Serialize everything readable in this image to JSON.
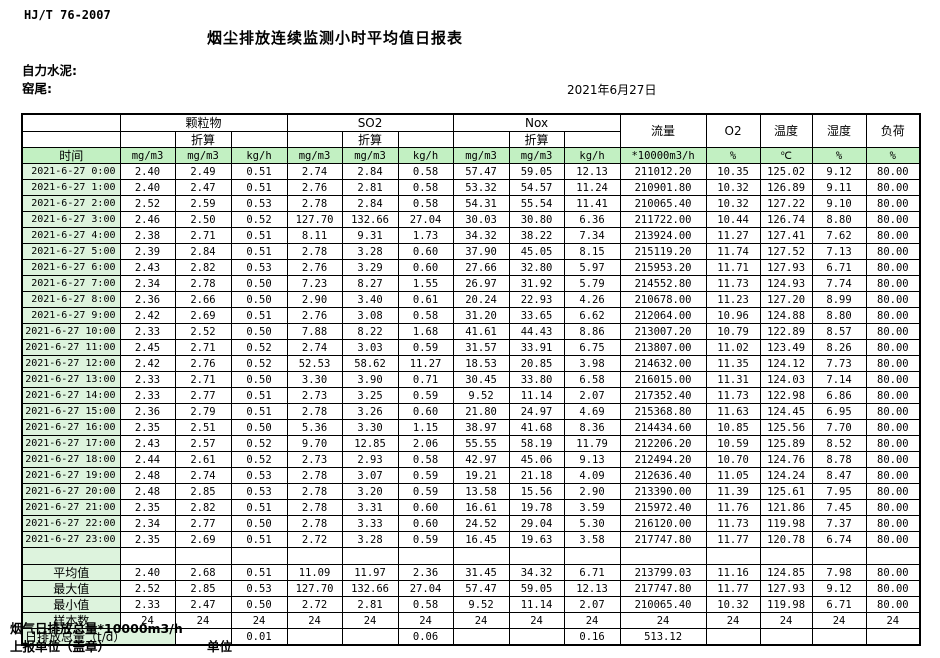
{
  "doc": {
    "standard": "HJ/T  76-2007",
    "title": "烟尘排放连续监测小时平均值日报表",
    "company": "自力水泥:",
    "location": "窑尾:",
    "date": "2021年6月27日"
  },
  "table": {
    "groups": [
      "颗粒物",
      "SO2",
      "Nox"
    ],
    "zhesuan": "折算",
    "headers": {
      "time": "时间",
      "flow": "流量",
      "o2": "O2",
      "temp": "温度",
      "humidity": "湿度",
      "load": "负荷"
    },
    "units": [
      "mg/m3",
      "mg/m3",
      "kg/h",
      "mg/m3",
      "mg/m3",
      "kg/h",
      "mg/m3",
      "mg/m3",
      "kg/h",
      "*10000m3/h",
      "%",
      "℃",
      "%",
      "%"
    ],
    "rows": [
      [
        "2021-6-27 0:00",
        "2.40",
        "2.49",
        "0.51",
        "2.74",
        "2.84",
        "0.58",
        "57.47",
        "59.05",
        "12.13",
        "211012.20",
        "10.35",
        "125.02",
        "9.12",
        "80.00"
      ],
      [
        "2021-6-27 1:00",
        "2.40",
        "2.47",
        "0.51",
        "2.76",
        "2.81",
        "0.58",
        "53.32",
        "54.57",
        "11.24",
        "210901.80",
        "10.32",
        "126.89",
        "9.11",
        "80.00"
      ],
      [
        "2021-6-27 2:00",
        "2.52",
        "2.59",
        "0.53",
        "2.78",
        "2.84",
        "0.58",
        "54.31",
        "55.54",
        "11.41",
        "210065.40",
        "10.32",
        "127.22",
        "9.10",
        "80.00"
      ],
      [
        "2021-6-27 3:00",
        "2.46",
        "2.50",
        "0.52",
        "127.70",
        "132.66",
        "27.04",
        "30.03",
        "30.80",
        "6.36",
        "211722.00",
        "10.44",
        "126.74",
        "8.80",
        "80.00"
      ],
      [
        "2021-6-27 4:00",
        "2.38",
        "2.71",
        "0.51",
        "8.11",
        "9.31",
        "1.73",
        "34.32",
        "38.22",
        "7.34",
        "213924.00",
        "11.27",
        "127.41",
        "7.62",
        "80.00"
      ],
      [
        "2021-6-27 5:00",
        "2.39",
        "2.84",
        "0.51",
        "2.78",
        "3.28",
        "0.60",
        "37.90",
        "45.05",
        "8.15",
        "215119.20",
        "11.74",
        "127.52",
        "7.13",
        "80.00"
      ],
      [
        "2021-6-27 6:00",
        "2.43",
        "2.82",
        "0.53",
        "2.76",
        "3.29",
        "0.60",
        "27.66",
        "32.80",
        "5.97",
        "215953.20",
        "11.71",
        "127.93",
        "6.71",
        "80.00"
      ],
      [
        "2021-6-27 7:00",
        "2.34",
        "2.78",
        "0.50",
        "7.23",
        "8.27",
        "1.55",
        "26.97",
        "31.92",
        "5.79",
        "214552.80",
        "11.73",
        "124.93",
        "7.74",
        "80.00"
      ],
      [
        "2021-6-27 8:00",
        "2.36",
        "2.66",
        "0.50",
        "2.90",
        "3.40",
        "0.61",
        "20.24",
        "22.93",
        "4.26",
        "210678.00",
        "11.23",
        "127.20",
        "8.99",
        "80.00"
      ],
      [
        "2021-6-27 9:00",
        "2.42",
        "2.69",
        "0.51",
        "2.76",
        "3.08",
        "0.58",
        "31.20",
        "33.65",
        "6.62",
        "212064.00",
        "10.96",
        "124.88",
        "8.80",
        "80.00"
      ],
      [
        "2021-6-27 10:00",
        "2.33",
        "2.52",
        "0.50",
        "7.88",
        "8.22",
        "1.68",
        "41.61",
        "44.43",
        "8.86",
        "213007.20",
        "10.79",
        "122.89",
        "8.57",
        "80.00"
      ],
      [
        "2021-6-27 11:00",
        "2.45",
        "2.71",
        "0.52",
        "2.74",
        "3.03",
        "0.59",
        "31.57",
        "33.91",
        "6.75",
        "213807.00",
        "11.02",
        "123.49",
        "8.26",
        "80.00"
      ],
      [
        "2021-6-27 12:00",
        "2.42",
        "2.76",
        "0.52",
        "52.53",
        "58.62",
        "11.27",
        "18.53",
        "20.85",
        "3.98",
        "214632.00",
        "11.35",
        "124.12",
        "7.73",
        "80.00"
      ],
      [
        "2021-6-27 13:00",
        "2.33",
        "2.71",
        "0.50",
        "3.30",
        "3.90",
        "0.71",
        "30.45",
        "33.80",
        "6.58",
        "216015.00",
        "11.31",
        "124.03",
        "7.14",
        "80.00"
      ],
      [
        "2021-6-27 14:00",
        "2.33",
        "2.77",
        "0.51",
        "2.73",
        "3.25",
        "0.59",
        "9.52",
        "11.14",
        "2.07",
        "217352.40",
        "11.73",
        "122.98",
        "6.86",
        "80.00"
      ],
      [
        "2021-6-27 15:00",
        "2.36",
        "2.79",
        "0.51",
        "2.78",
        "3.26",
        "0.60",
        "21.80",
        "24.97",
        "4.69",
        "215368.80",
        "11.63",
        "124.45",
        "6.95",
        "80.00"
      ],
      [
        "2021-6-27 16:00",
        "2.35",
        "2.51",
        "0.50",
        "5.36",
        "3.30",
        "1.15",
        "38.97",
        "41.68",
        "8.36",
        "214434.60",
        "10.85",
        "125.56",
        "7.70",
        "80.00"
      ],
      [
        "2021-6-27 17:00",
        "2.43",
        "2.57",
        "0.52",
        "9.70",
        "12.85",
        "2.06",
        "55.55",
        "58.19",
        "11.79",
        "212206.20",
        "10.59",
        "125.89",
        "8.52",
        "80.00"
      ],
      [
        "2021-6-27 18:00",
        "2.44",
        "2.61",
        "0.52",
        "2.73",
        "2.93",
        "0.58",
        "42.97",
        "45.06",
        "9.13",
        "212494.20",
        "10.70",
        "124.76",
        "8.78",
        "80.00"
      ],
      [
        "2021-6-27 19:00",
        "2.48",
        "2.74",
        "0.53",
        "2.78",
        "3.07",
        "0.59",
        "19.21",
        "21.18",
        "4.09",
        "212636.40",
        "11.05",
        "124.24",
        "8.47",
        "80.00"
      ],
      [
        "2021-6-27 20:00",
        "2.48",
        "2.85",
        "0.53",
        "2.78",
        "3.20",
        "0.59",
        "13.58",
        "15.56",
        "2.90",
        "213390.00",
        "11.39",
        "125.61",
        "7.95",
        "80.00"
      ],
      [
        "2021-6-27 21:00",
        "2.35",
        "2.82",
        "0.51",
        "2.78",
        "3.31",
        "0.60",
        "16.61",
        "19.78",
        "3.59",
        "215972.40",
        "11.76",
        "121.86",
        "7.45",
        "80.00"
      ],
      [
        "2021-6-27 22:00",
        "2.34",
        "2.77",
        "0.50",
        "2.78",
        "3.33",
        "0.60",
        "24.52",
        "29.04",
        "5.30",
        "216120.00",
        "11.73",
        "119.98",
        "7.37",
        "80.00"
      ],
      [
        "2021-6-27 23:00",
        "2.35",
        "2.69",
        "0.51",
        "2.72",
        "3.28",
        "0.59",
        "16.45",
        "19.63",
        "3.58",
        "217747.80",
        "11.77",
        "120.78",
        "6.74",
        "80.00"
      ]
    ],
    "summary": [
      {
        "label": "平均值",
        "values": [
          "2.40",
          "2.68",
          "0.51",
          "11.09",
          "11.97",
          "2.36",
          "31.45",
          "34.32",
          "6.71",
          "213799.03",
          "11.16",
          "124.85",
          "7.98",
          "80.00"
        ]
      },
      {
        "label": "最大值",
        "values": [
          "2.52",
          "2.85",
          "0.53",
          "127.70",
          "132.66",
          "27.04",
          "57.47",
          "59.05",
          "12.13",
          "217747.80",
          "11.77",
          "127.93",
          "9.12",
          "80.00"
        ]
      },
      {
        "label": "最小值",
        "values": [
          "2.33",
          "2.47",
          "0.50",
          "2.72",
          "2.81",
          "0.58",
          "9.52",
          "11.14",
          "2.07",
          "210065.40",
          "10.32",
          "119.98",
          "6.71",
          "80.00"
        ]
      },
      {
        "label": "样本数",
        "values": [
          "24",
          "24",
          "24",
          "24",
          "24",
          "24",
          "24",
          "24",
          "24",
          "24",
          "24",
          "24",
          "24",
          "24"
        ]
      }
    ],
    "total_row": {
      "label": "日排放总量（t/d）",
      "values": [
        "",
        "0.01",
        "",
        "",
        "0.06",
        "",
        "",
        "0.16",
        "513.12",
        "",
        "",
        "",
        ""
      ]
    }
  },
  "footer": {
    "line1": "烟气日排放总量*10000m3/h",
    "line2": "上报单位（盖章）",
    "line3": "单位"
  },
  "colors": {
    "header_green": "#c2f0c2",
    "column_green": "#ddf3dd",
    "border": "#000000"
  }
}
